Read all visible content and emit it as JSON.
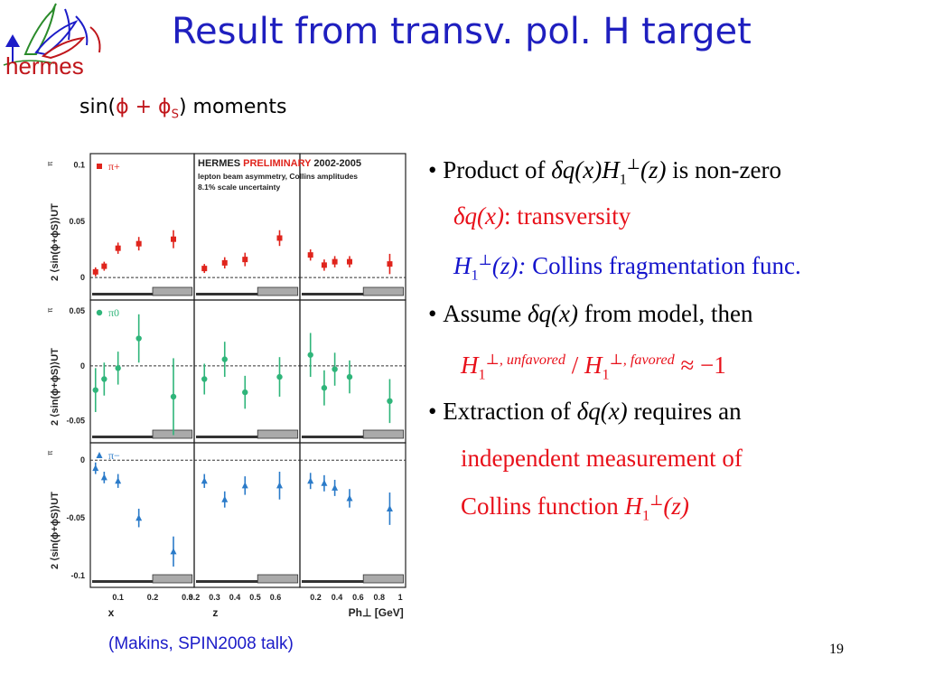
{
  "slide": {
    "title": "Result from transv. pol. H target",
    "subtitle_prefix": "sin(",
    "subtitle_phi": "ϕ",
    "subtitle_plus": " + ",
    "subtitle_phis": "ϕ",
    "subtitle_s": "S",
    "subtitle_suffix": ")  moments",
    "logo_text": "hermes",
    "credit": "(Makins, SPIN2008 talk)",
    "page_number": "19"
  },
  "bullets": [
    {
      "pre": "Product of ",
      "math": "δq(x)H",
      "sub": "1",
      "sup": "⊥",
      "math2": "(z)",
      "post": " is non-zero"
    },
    {
      "math": "δq(x)",
      "post": ": transversity"
    },
    {
      "math": "H",
      "sub": "1",
      "sup": "⊥",
      "math2": "(z):",
      "post": "  Collins fragmentation func."
    },
    {
      "pre": "Assume ",
      "math": "δq(x)",
      "post": " from model, then"
    },
    {
      "math": "H",
      "sub": "1",
      "sup": "⊥, unfavored",
      "mid": " / ",
      "math2": "H",
      "sub2": "1",
      "sup2": "⊥, favored",
      "post": "  ≈ −1"
    },
    {
      "pre": "Extraction of  ",
      "math": "δq(x)",
      "post": " requires an"
    },
    {
      "text": "independent measurement of"
    },
    {
      "pre": "Collins function ",
      "math": "H",
      "sub": "1",
      "sup": "⊥",
      "math2": "(z)"
    }
  ],
  "chart_data": {
    "type": "scatter",
    "header": "HERMES PRELIMINARY 2002-2005",
    "header_line1": "HERMES ",
    "header_prelim": "PRELIMINARY",
    "header_years": " 2002-2005",
    "notes": [
      "lepton beam asymmetry, Collins amplitudes",
      "8.1% scale uncertainty"
    ],
    "ylabel": "2 ⟨sin(ϕ+ϕS)⟩UT",
    "ylabel_sup": "π",
    "xlabels": [
      "x",
      "z",
      "Ph⊥ [GeV]"
    ],
    "xticks": [
      [
        "0.1",
        "0.2",
        "0.3"
      ],
      [
        "0.2",
        "0.3",
        "0.4",
        "0.5",
        "0.6"
      ],
      [
        "0.2",
        "0.4",
        "0.6",
        "0.8",
        "1"
      ]
    ],
    "colors": {
      "pi_plus": "#e0241c",
      "pi_zero": "#2fb57a",
      "pi_minus": "#2b7bc9"
    },
    "rows": [
      {
        "name": "π+",
        "marker": "square",
        "color": "#e0241c",
        "yticks": [
          "0.1",
          "0.05",
          "0"
        ],
        "ylim": [
          -0.02,
          0.11
        ],
        "panels": [
          {
            "x": [
              0.035,
              0.06,
              0.1,
              0.16,
              0.26
            ],
            "y": [
              0.005,
              0.01,
              0.026,
              0.03,
              0.034
            ],
            "err": [
              0.004,
              0.004,
              0.005,
              0.006,
              0.008
            ]
          },
          {
            "x": [
              0.25,
              0.35,
              0.45,
              0.62
            ],
            "y": [
              0.008,
              0.013,
              0.016,
              0.035
            ],
            "err": [
              0.004,
              0.005,
              0.006,
              0.007
            ]
          },
          {
            "x": [
              0.15,
              0.28,
              0.38,
              0.52,
              0.9
            ],
            "y": [
              0.02,
              0.011,
              0.014,
              0.014,
              0.012
            ],
            "err": [
              0.005,
              0.005,
              0.005,
              0.005,
              0.009
            ]
          }
        ]
      },
      {
        "name": "π0",
        "marker": "circle",
        "color": "#2fb57a",
        "yticks": [
          "0.05",
          "0",
          "-0.05"
        ],
        "ylim": [
          -0.07,
          0.06
        ],
        "panels": [
          {
            "x": [
              0.035,
              0.06,
              0.1,
              0.16,
              0.26
            ],
            "y": [
              -0.022,
              -0.012,
              -0.002,
              0.025,
              -0.028
            ],
            "err": [
              0.02,
              0.015,
              0.015,
              0.022,
              0.035
            ]
          },
          {
            "x": [
              0.25,
              0.35,
              0.45,
              0.62
            ],
            "y": [
              -0.012,
              0.006,
              -0.024,
              -0.01
            ],
            "err": [
              0.014,
              0.016,
              0.015,
              0.018
            ]
          },
          {
            "x": [
              0.15,
              0.28,
              0.38,
              0.52,
              0.9
            ],
            "y": [
              0.01,
              -0.02,
              -0.003,
              -0.01,
              -0.032
            ],
            "err": [
              0.02,
              0.016,
              0.015,
              0.015,
              0.02
            ]
          }
        ]
      },
      {
        "name": "π−",
        "marker": "triangle",
        "color": "#2b7bc9",
        "yticks": [
          "0",
          "-0.05",
          "-0.1"
        ],
        "ylim": [
          -0.11,
          0.015
        ],
        "panels": [
          {
            "x": [
              0.035,
              0.06,
              0.1,
              0.16,
              0.26
            ],
            "y": [
              -0.007,
              -0.015,
              -0.018,
              -0.05,
              -0.079
            ],
            "err": [
              0.005,
              0.005,
              0.006,
              0.008,
              0.013
            ]
          },
          {
            "x": [
              0.25,
              0.35,
              0.45,
              0.62
            ],
            "y": [
              -0.018,
              -0.034,
              -0.022,
              -0.022
            ],
            "err": [
              0.006,
              0.007,
              0.008,
              0.012
            ]
          },
          {
            "x": [
              0.15,
              0.28,
              0.38,
              0.52,
              0.9
            ],
            "y": [
              -0.018,
              -0.02,
              -0.024,
              -0.033,
              -0.042
            ],
            "err": [
              0.007,
              0.007,
              0.007,
              0.008,
              0.014
            ]
          }
        ]
      }
    ],
    "xlims": [
      [
        0.02,
        0.32
      ],
      [
        0.2,
        0.72
      ],
      [
        0.05,
        1.05
      ]
    ],
    "xtick_values": [
      [
        0.1,
        0.2,
        0.3
      ],
      [
        0.2,
        0.3,
        0.4,
        0.5,
        0.6
      ],
      [
        0.2,
        0.4,
        0.6,
        0.8,
        1.0
      ]
    ]
  }
}
